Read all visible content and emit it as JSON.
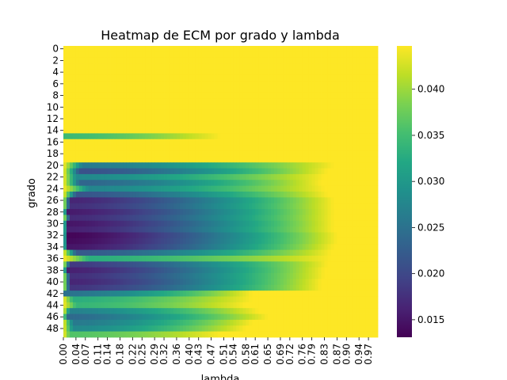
{
  "chart_data": {
    "type": "heatmap",
    "title": "Heatmap de ECM por grado y lambda",
    "xlabel": "lambda",
    "ylabel": "grado",
    "y_tick_labels": [
      "0",
      "2",
      "4",
      "6",
      "8",
      "10",
      "12",
      "14",
      "16",
      "18",
      "20",
      "22",
      "24",
      "26",
      "28",
      "30",
      "32",
      "34",
      "36",
      "38",
      "40",
      "42",
      "44",
      "46",
      "48"
    ],
    "x_tick_labels": [
      "0.00",
      "0.04",
      "0.07",
      "0.11",
      "0.14",
      "0.18",
      "0.22",
      "0.25",
      "0.29",
      "0.32",
      "0.36",
      "0.40",
      "0.43",
      "0.47",
      "0.51",
      "0.54",
      "0.58",
      "0.61",
      "0.65",
      "0.69",
      "0.72",
      "0.76",
      "0.79",
      "0.83",
      "0.87",
      "0.90",
      "0.94",
      "0.97"
    ],
    "colorbar": {
      "colormap": "viridis",
      "range": [
        0.0131,
        0.0447
      ],
      "ticks": [
        "0.015",
        "0.020",
        "0.025",
        "0.030",
        "0.035",
        "0.040"
      ],
      "tick_values": [
        0.015,
        0.02,
        0.025,
        0.03,
        0.035,
        0.04
      ]
    },
    "grid": false,
    "grado": [
      0,
      49
    ],
    "lambda_range": [
      0.0,
      1.0
    ],
    "rows": [
      {
        "grado": 15,
        "min_ecm": 0.0345,
        "min_lambda": 0.0,
        "sat_lambda": 0.5
      },
      {
        "grado": 20,
        "min_ecm": 0.026,
        "min_lambda": 0.06,
        "sat_lambda": 0.86
      },
      {
        "grado": 21,
        "min_ecm": 0.021,
        "min_lambda": 0.05,
        "sat_lambda": 0.84
      },
      {
        "grado": 22,
        "min_ecm": 0.028,
        "min_lambda": 0.04,
        "sat_lambda": 0.83
      },
      {
        "grado": 23,
        "min_ecm": 0.0235,
        "min_lambda": 0.05,
        "sat_lambda": 0.82
      },
      {
        "grado": 24,
        "min_ecm": 0.0275,
        "min_lambda": 0.08,
        "sat_lambda": 0.83
      },
      {
        "grado": 25,
        "min_ecm": 0.0215,
        "min_lambda": 0.04,
        "sat_lambda": 0.84
      },
      {
        "grado": 26,
        "min_ecm": 0.0165,
        "min_lambda": 0.02,
        "sat_lambda": 0.86
      },
      {
        "grado": 27,
        "min_ecm": 0.0175,
        "min_lambda": 0.02,
        "sat_lambda": 0.86
      },
      {
        "grado": 28,
        "min_ecm": 0.0155,
        "min_lambda": 0.01,
        "sat_lambda": 0.86
      },
      {
        "grado": 29,
        "min_ecm": 0.017,
        "min_lambda": 0.02,
        "sat_lambda": 0.86
      },
      {
        "grado": 30,
        "min_ecm": 0.015,
        "min_lambda": 0.01,
        "sat_lambda": 0.86
      },
      {
        "grado": 31,
        "min_ecm": 0.016,
        "min_lambda": 0.01,
        "sat_lambda": 0.86
      },
      {
        "grado": 32,
        "min_ecm": 0.0135,
        "min_lambda": 0.01,
        "sat_lambda": 0.87
      },
      {
        "grado": 33,
        "min_ecm": 0.014,
        "min_lambda": 0.01,
        "sat_lambda": 0.87
      },
      {
        "grado": 34,
        "min_ecm": 0.015,
        "min_lambda": 0.01,
        "sat_lambda": 0.86
      },
      {
        "grado": 35,
        "min_ecm": 0.022,
        "min_lambda": 0.04,
        "sat_lambda": 0.85
      },
      {
        "grado": 36,
        "min_ecm": 0.033,
        "min_lambda": 0.08,
        "sat_lambda": 0.85
      },
      {
        "grado": 37,
        "min_ecm": 0.0185,
        "min_lambda": 0.02,
        "sat_lambda": 0.84
      },
      {
        "grado": 38,
        "min_ecm": 0.016,
        "min_lambda": 0.01,
        "sat_lambda": 0.83
      },
      {
        "grado": 39,
        "min_ecm": 0.0175,
        "min_lambda": 0.02,
        "sat_lambda": 0.83
      },
      {
        "grado": 40,
        "min_ecm": 0.0165,
        "min_lambda": 0.02,
        "sat_lambda": 0.82
      },
      {
        "grado": 41,
        "min_ecm": 0.018,
        "min_lambda": 0.02,
        "sat_lambda": 0.82
      },
      {
        "grado": 42,
        "min_ecm": 0.025,
        "min_lambda": 0.0,
        "sat_lambda": 0.6
      },
      {
        "grado": 43,
        "min_ecm": 0.033,
        "min_lambda": 0.03,
        "sat_lambda": 0.6
      },
      {
        "grado": 44,
        "min_ecm": 0.034,
        "min_lambda": 0.04,
        "sat_lambda": 0.58
      },
      {
        "grado": 45,
        "min_ecm": 0.027,
        "min_lambda": 0.02,
        "sat_lambda": 0.62
      },
      {
        "grado": 46,
        "min_ecm": 0.024,
        "min_lambda": 0.01,
        "sat_lambda": 0.65
      },
      {
        "grado": 47,
        "min_ecm": 0.026,
        "min_lambda": 0.03,
        "sat_lambda": 0.6
      },
      {
        "grado": 48,
        "min_ecm": 0.028,
        "min_lambda": 0.03,
        "sat_lambda": 0.58
      },
      {
        "grado": 49,
        "min_ecm": 0.036,
        "min_lambda": 0.02,
        "sat_lambda": 0.5
      }
    ],
    "default_ecm": 0.0447
  }
}
